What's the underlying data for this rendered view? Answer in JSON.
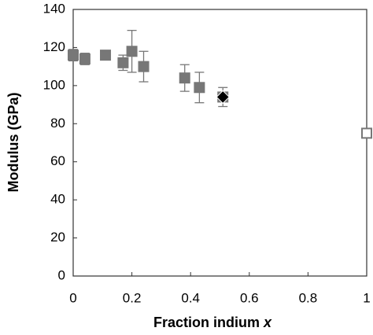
{
  "chart_data": {
    "type": "scatter",
    "x_label": "Fraction indium",
    "x_label_var": "x",
    "y_label": "Modulus (GPa)",
    "xlim": [
      0,
      1
    ],
    "xticks": [
      0,
      0.2,
      0.4,
      0.6,
      0.8,
      1
    ],
    "ylim": [
      0,
      140
    ],
    "yticks": [
      0,
      20,
      40,
      60,
      80,
      100,
      120,
      140
    ],
    "grid": false,
    "series": [
      {
        "marker": "square",
        "color": "#777777",
        "x": [
          0,
          0.04,
          0.11,
          0.17,
          0.2,
          0.24,
          0.38,
          0.43,
          0.51
        ],
        "values": [
          116,
          114,
          116,
          112,
          118,
          110,
          104,
          99,
          94
        ],
        "errors": [
          3,
          3,
          2,
          4,
          11,
          8,
          7,
          8,
          5
        ]
      },
      {
        "marker": "diamond",
        "color": "#000000",
        "x": [
          0.51
        ],
        "values": [
          94
        ]
      },
      {
        "marker": "hollow-square",
        "color": "#777777",
        "x": [
          1
        ],
        "values": [
          75
        ]
      }
    ]
  }
}
